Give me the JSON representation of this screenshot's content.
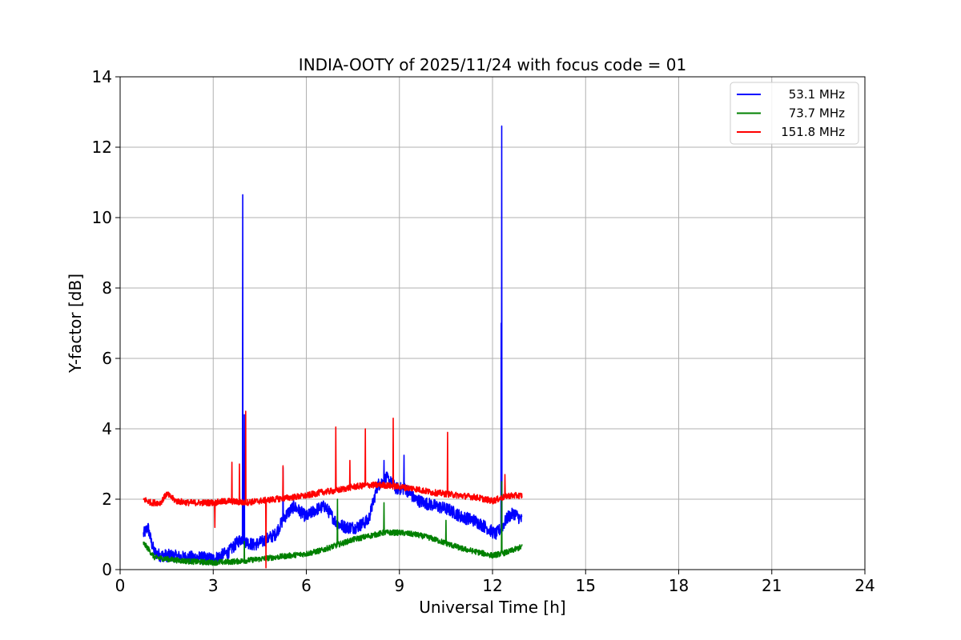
{
  "chart_data": {
    "type": "line",
    "title": "INDIA-OOTY of 2025/11/24 with focus code = 01",
    "xlabel": "Universal Time [h]",
    "ylabel": "Y-factor [dB]",
    "xlim": [
      0,
      24
    ],
    "ylim": [
      0,
      14
    ],
    "xticks": [
      0,
      3,
      6,
      9,
      12,
      15,
      18,
      21,
      24
    ],
    "yticks": [
      0,
      2,
      4,
      6,
      8,
      10,
      12,
      14
    ],
    "grid": true,
    "legend_position": "top-right",
    "series": [
      {
        "name": "53.1 MHz",
        "color": "#0000ff",
        "noise": 0.18,
        "x": [
          0.75,
          0.9,
          1.0,
          1.1,
          1.3,
          1.6,
          2.0,
          2.5,
          3.0,
          3.5,
          3.8,
          3.95,
          4.05,
          4.3,
          4.6,
          5.0,
          5.3,
          5.6,
          6.0,
          6.3,
          6.6,
          7.0,
          7.3,
          7.6,
          8.0,
          8.3,
          8.6,
          8.9,
          9.2,
          9.5,
          9.8,
          10.2,
          10.6,
          11.0,
          11.4,
          11.8,
          12.1,
          12.3,
          12.5,
          12.7,
          12.95
        ],
        "y": [
          1.0,
          1.2,
          0.8,
          0.5,
          0.4,
          0.4,
          0.35,
          0.35,
          0.3,
          0.5,
          0.8,
          0.9,
          0.8,
          0.7,
          0.8,
          1.0,
          1.5,
          1.8,
          1.5,
          1.7,
          1.8,
          1.3,
          1.2,
          1.2,
          1.4,
          2.4,
          2.6,
          2.3,
          2.3,
          2.0,
          1.9,
          1.8,
          1.7,
          1.5,
          1.4,
          1.2,
          1.0,
          1.2,
          1.5,
          1.6,
          1.4
        ],
        "spikes": [
          [
            3.95,
            10.65
          ],
          [
            12.3,
            12.6
          ],
          [
            12.28,
            7.0
          ],
          [
            9.15,
            3.25
          ],
          [
            5.25,
            2.9
          ],
          [
            8.5,
            3.1
          ],
          [
            4.0,
            4.4
          ]
        ]
      },
      {
        "name": "73.7 MHz",
        "color": "#008000",
        "noise": 0.08,
        "x": [
          0.75,
          0.9,
          1.1,
          1.5,
          2.0,
          2.5,
          3.0,
          3.5,
          4.0,
          4.5,
          5.0,
          5.5,
          6.0,
          6.5,
          7.0,
          7.5,
          8.0,
          8.5,
          9.0,
          9.5,
          10.0,
          10.5,
          11.0,
          11.5,
          12.0,
          12.5,
          12.95
        ],
        "y": [
          0.75,
          0.6,
          0.35,
          0.3,
          0.25,
          0.22,
          0.2,
          0.22,
          0.25,
          0.3,
          0.35,
          0.4,
          0.45,
          0.55,
          0.7,
          0.85,
          0.95,
          1.05,
          1.05,
          1.0,
          0.9,
          0.75,
          0.6,
          0.5,
          0.4,
          0.5,
          0.65
        ],
        "spikes": [
          [
            7.0,
            2.0
          ],
          [
            8.5,
            1.9
          ],
          [
            10.5,
            1.4
          ],
          [
            12.3,
            2.5
          ],
          [
            4.0,
            0.8
          ]
        ]
      },
      {
        "name": "151.8 MHz",
        "color": "#ff0000",
        "noise": 0.09,
        "x": [
          0.75,
          1.0,
          1.3,
          1.5,
          1.8,
          2.2,
          2.6,
          3.0,
          3.5,
          4.0,
          4.5,
          5.0,
          5.5,
          6.0,
          6.5,
          7.0,
          7.5,
          8.0,
          8.5,
          9.0,
          9.5,
          10.0,
          10.5,
          11.0,
          11.5,
          12.0,
          12.5,
          12.95
        ],
        "y": [
          2.0,
          1.9,
          1.9,
          2.15,
          1.95,
          1.9,
          1.9,
          1.9,
          1.95,
          1.9,
          1.95,
          2.0,
          2.05,
          2.1,
          2.2,
          2.25,
          2.35,
          2.4,
          2.4,
          2.35,
          2.3,
          2.2,
          2.15,
          2.1,
          2.05,
          1.95,
          2.1,
          2.1
        ],
        "spikes": [
          [
            4.05,
            4.5
          ],
          [
            8.8,
            4.3
          ],
          [
            6.95,
            4.05
          ],
          [
            7.9,
            4.0
          ],
          [
            10.55,
            3.9
          ],
          [
            3.6,
            3.05
          ],
          [
            3.85,
            3.0
          ],
          [
            5.25,
            2.95
          ],
          [
            7.4,
            3.1
          ],
          [
            12.4,
            2.7
          ],
          [
            4.7,
            0.05
          ],
          [
            3.05,
            1.2
          ]
        ]
      }
    ]
  }
}
